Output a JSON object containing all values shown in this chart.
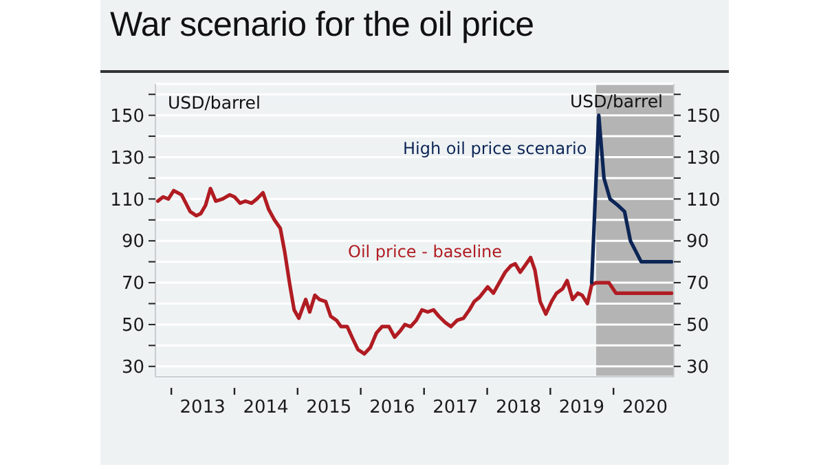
{
  "chart_data": {
    "type": "line",
    "title": "War scenario for the oil price",
    "ylabel": "USD/barrel",
    "y2label": "USD/barrel",
    "x": [
      "2012-10-15",
      "2012-11-15",
      "2012-12-15",
      "2013-01-15",
      "2013-03-01",
      "2013-03-20",
      "2013-04-20",
      "2013-05-25",
      "2013-06-20",
      "2013-07-18",
      "2013-08-15",
      "2013-09-15",
      "2013-10-25",
      "2013-12-05",
      "2014-01-01",
      "2014-02-03",
      "2014-03-05",
      "2014-04-10",
      "2014-05-10",
      "2014-06-15",
      "2014-07-18",
      "2014-08-20",
      "2014-09-23",
      "2014-10-18",
      "2014-11-17",
      "2014-12-12",
      "2015-01-08",
      "2015-01-30",
      "2015-02-17",
      "2015-03-12",
      "2015-04-11",
      "2015-05-07",
      "2015-06-12",
      "2015-07-11",
      "2015-08-14",
      "2015-09-09",
      "2015-10-15",
      "2015-11-17",
      "2015-12-16",
      "2016-01-22",
      "2016-02-25",
      "2016-04-01",
      "2016-05-03",
      "2016-06-12",
      "2016-07-15",
      "2016-08-17",
      "2016-09-12",
      "2016-10-15",
      "2016-11-17",
      "2016-12-20",
      "2017-01-22",
      "2017-02-25",
      "2017-03-27",
      "2017-05-03",
      "2017-06-05",
      "2017-07-11",
      "2017-08-17",
      "2017-09-20",
      "2017-10-18",
      "2017-11-17",
      "2018-01-04",
      "2018-02-06",
      "2018-03-12",
      "2018-04-15",
      "2018-05-17",
      "2018-06-12",
      "2018-07-11",
      "2018-08-06",
      "2018-09-09",
      "2018-10-04",
      "2018-11-03",
      "2018-12-06",
      "2019-01-08",
      "2019-02-06",
      "2019-03-12",
      "2019-04-08",
      "2019-05-10",
      "2019-06-09",
      "2019-07-04",
      "2019-08-03",
      "2019-08-28",
      "2019-09-23",
      "2019-12-06",
      "2020-01-15",
      "2020-12-02"
    ],
    "series": [
      {
        "name": "Oil price - baseline",
        "color": "#b01c22",
        "values": [
          109,
          111,
          110,
          114,
          112,
          109,
          104,
          102,
          103,
          107,
          115,
          109,
          110,
          112,
          111,
          108,
          109,
          108,
          110,
          113,
          105,
          100,
          96,
          85,
          69,
          57,
          53,
          58,
          62,
          56,
          64,
          62,
          61,
          54,
          52,
          49,
          49,
          43,
          38,
          36,
          39,
          46,
          49,
          49,
          44,
          47,
          50,
          49,
          52,
          57,
          56,
          57,
          54,
          51,
          49,
          52,
          53,
          57,
          61,
          63,
          68,
          65,
          70,
          75,
          78,
          79,
          75,
          78,
          82,
          76,
          61,
          55,
          61,
          65,
          67,
          71,
          62,
          65,
          64,
          60,
          69,
          70,
          70,
          65,
          65
        ]
      },
      {
        "name": "High oil price scenario",
        "color": "#0c2556",
        "x": [
          "2019-08-28",
          "2019-10-08",
          "2019-11-07",
          "2019-12-12",
          "2020-01-26",
          "2020-03-05",
          "2020-04-08",
          "2020-06-09",
          "2020-12-02"
        ],
        "values": [
          70,
          150,
          120,
          110,
          107,
          104,
          90,
          80,
          80
        ]
      }
    ],
    "xlim": [
      "2012-10-01",
      "2020-12-15"
    ],
    "xticks": [
      {
        "value": "2013-01-01",
        "label": null
      },
      {
        "value": "2013-07-01",
        "label": "2013"
      },
      {
        "value": "2014-01-01",
        "label": null
      },
      {
        "value": "2014-07-01",
        "label": "2014"
      },
      {
        "value": "2015-01-01",
        "label": null
      },
      {
        "value": "2015-07-01",
        "label": "2015"
      },
      {
        "value": "2016-01-01",
        "label": null
      },
      {
        "value": "2016-07-01",
        "label": "2016"
      },
      {
        "value": "2017-01-01",
        "label": null
      },
      {
        "value": "2017-07-01",
        "label": "2017"
      },
      {
        "value": "2018-01-01",
        "label": null
      },
      {
        "value": "2018-07-01",
        "label": "2018"
      },
      {
        "value": "2019-01-01",
        "label": null
      },
      {
        "value": "2019-07-01",
        "label": "2019"
      },
      {
        "value": "2020-01-01",
        "label": null
      },
      {
        "value": "2020-07-01",
        "label": "2020"
      }
    ],
    "ylim": [
      25,
      165
    ],
    "yticks": [
      30,
      {
        "value": 40,
        "label": null
      },
      50,
      {
        "value": 60,
        "label": null
      },
      70,
      {
        "value": 80,
        "label": null
      },
      90,
      {
        "value": 100,
        "label": null
      },
      110,
      {
        "value": 120,
        "label": null
      },
      130,
      {
        "value": 140,
        "label": null
      },
      150,
      {
        "value": 160,
        "label": null
      }
    ],
    "y2lim": [
      25,
      165
    ],
    "y2ticks": [
      30,
      {
        "value": 40,
        "label": null
      },
      50,
      {
        "value": 60,
        "label": null
      },
      70,
      {
        "value": 80,
        "label": null
      },
      90,
      {
        "value": 100,
        "label": null
      },
      110,
      {
        "value": 120,
        "label": null
      },
      130,
      {
        "value": 140,
        "label": null
      },
      150,
      {
        "value": 160,
        "label": null
      }
    ],
    "bands": [
      {
        "axis": "x",
        "from": "2019-09-23",
        "to": "2020-12-15",
        "color": "#b4b4b4"
      }
    ],
    "grid": "y",
    "marker": "none",
    "line_style": "solid"
  }
}
